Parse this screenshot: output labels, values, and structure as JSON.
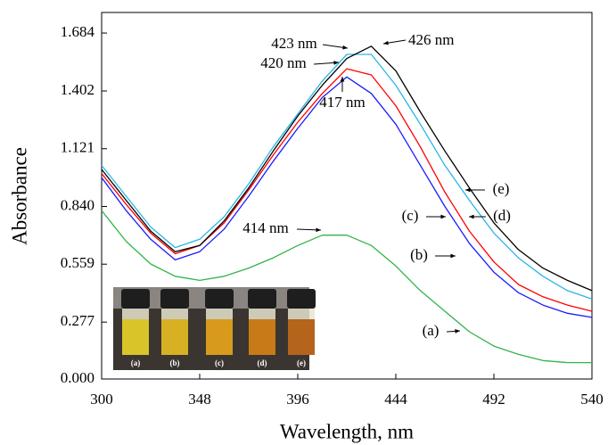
{
  "chart_data": {
    "type": "line",
    "xlabel": "Wavelength, nm",
    "ylabel": "Absorbance",
    "x": [
      300,
      312,
      324,
      336,
      348,
      360,
      372,
      384,
      396,
      408,
      420,
      432,
      444,
      456,
      468,
      480,
      492,
      504,
      516,
      528,
      540
    ],
    "series": [
      {
        "name": "(a)",
        "color": "#33b34a",
        "values": [
          0.82,
          0.67,
          0.56,
          0.5,
          0.48,
          0.5,
          0.54,
          0.59,
          0.65,
          0.7,
          0.7,
          0.65,
          0.55,
          0.43,
          0.33,
          0.23,
          0.16,
          0.12,
          0.09,
          0.08,
          0.08
        ]
      },
      {
        "name": "(b)",
        "color": "#1a1aff",
        "values": [
          0.98,
          0.82,
          0.68,
          0.58,
          0.62,
          0.73,
          0.89,
          1.06,
          1.22,
          1.37,
          1.47,
          1.39,
          1.24,
          1.04,
          0.84,
          0.66,
          0.52,
          0.42,
          0.36,
          0.32,
          0.3
        ]
      },
      {
        "name": "(c)",
        "color": "#ff0000",
        "values": [
          1.0,
          0.85,
          0.71,
          0.61,
          0.65,
          0.76,
          0.92,
          1.09,
          1.25,
          1.39,
          1.51,
          1.48,
          1.33,
          1.13,
          0.91,
          0.72,
          0.57,
          0.46,
          0.4,
          0.36,
          0.33
        ]
      },
      {
        "name": "(d)",
        "color": "#29b6e6",
        "values": [
          1.04,
          0.89,
          0.74,
          0.64,
          0.68,
          0.79,
          0.95,
          1.13,
          1.29,
          1.45,
          1.58,
          1.58,
          1.43,
          1.24,
          1.04,
          0.87,
          0.71,
          0.59,
          0.5,
          0.43,
          0.39
        ]
      },
      {
        "name": "(e)",
        "color": "#000000",
        "values": [
          1.02,
          0.87,
          0.72,
          0.62,
          0.65,
          0.77,
          0.93,
          1.11,
          1.28,
          1.43,
          1.56,
          1.62,
          1.5,
          1.3,
          1.11,
          0.93,
          0.76,
          0.63,
          0.54,
          0.48,
          0.43
        ]
      }
    ],
    "annotations": [
      "423 nm",
      "426  nm",
      "420 nm",
      "417 nm",
      "414 nm"
    ],
    "xlim": [
      300,
      540
    ],
    "xticks": [
      300,
      348,
      396,
      444,
      492,
      540
    ],
    "ylim": [
      0,
      1.784
    ],
    "yticks": [
      {
        "value": 0,
        "label": "0.000"
      },
      0.277,
      0.559,
      {
        "value": 0.84,
        "label": "0.840"
      },
      1.121,
      1.402,
      1.684
    ]
  }
}
